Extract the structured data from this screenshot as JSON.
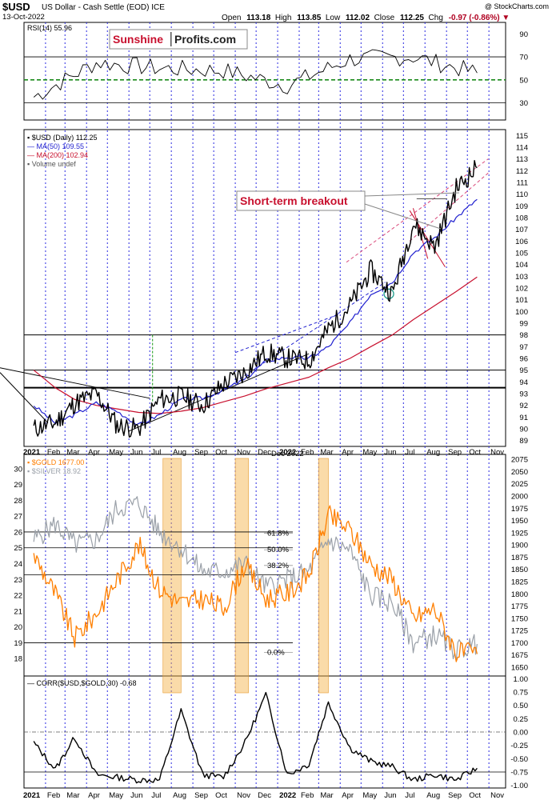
{
  "header": {
    "symbol": "$USD",
    "description": "US Dollar - Cash Settle (EOD) ICE",
    "date": "13-Oct-2022",
    "open_label": "Open",
    "open": "113.18",
    "high_label": "High",
    "high": "113.85",
    "low_label": "Low",
    "low": "112.02",
    "close_label": "Close",
    "close": "112.25",
    "chg_label": "Chg",
    "chg": "-0.97 (-0.86%)",
    "credit": "@ StockCharts.com"
  },
  "logo": {
    "part1": "Sunshine",
    "part2": "Profits.com"
  },
  "annotation": {
    "breakout": "Short-term breakout"
  },
  "x_axis": {
    "labels": [
      "2021",
      "Feb",
      "Mar",
      "Apr",
      "May",
      "Jun",
      "Jul",
      "Aug",
      "Sep",
      "Oct",
      "Nov",
      "Dec",
      "2022",
      "Feb",
      "Mar",
      "Apr",
      "May",
      "Jun",
      "Jul",
      "Aug",
      "Sep",
      "Oct",
      "Nov"
    ],
    "dec_2022_label": "Dec 2022"
  },
  "colors": {
    "usd": "#000000",
    "ma50": "#1f1fcf",
    "ma200": "#c8102e",
    "gold": "#ff7f00",
    "silver": "#9aa0a8",
    "rsi50": "#1a8a1a",
    "highlight": "#f5b041",
    "logo_red": "#c8102e"
  },
  "chart_data": [
    {
      "type": "line",
      "panel": "rsi",
      "legend": "RSI(14) 55.96",
      "ylim": [
        15,
        100
      ],
      "ticks": [
        90,
        70,
        50,
        30
      ],
      "reference_lines": [
        70,
        50,
        30
      ],
      "x": [
        "2021-01",
        "2021-04",
        "2021-07",
        "2021-10",
        "2022-01",
        "2022-04",
        "2022-07",
        "2022-10"
      ],
      "series": [
        {
          "name": "RSI(14)",
          "values": [
            35,
            65,
            60,
            58,
            45,
            68,
            70,
            56
          ]
        }
      ]
    },
    {
      "type": "line",
      "panel": "usd",
      "legend": [
        "$USD (Daily) 112.25",
        "MA(50) 109.55",
        "MA(200) 102.94",
        "Volume undef"
      ],
      "ylim": [
        88.5,
        115.5
      ],
      "ticks": [
        115,
        114,
        113,
        112,
        111,
        110,
        109,
        108,
        107,
        106,
        105,
        104,
        103,
        102,
        101,
        100,
        99,
        98,
        97,
        96,
        95,
        94,
        93,
        92,
        91,
        90,
        89
      ],
      "horizontal_lines": [
        98,
        95,
        93.5
      ],
      "x": [
        "2021-01",
        "2021-02",
        "2021-03",
        "2021-04",
        "2021-05",
        "2021-06",
        "2021-07",
        "2021-08",
        "2021-09",
        "2021-10",
        "2021-11",
        "2021-12",
        "2022-01",
        "2022-02",
        "2022-03",
        "2022-04",
        "2022-05",
        "2022-06",
        "2022-07",
        "2022-08",
        "2022-09",
        "2022-10"
      ],
      "series": [
        {
          "name": "$USD",
          "values": [
            90.0,
            90.5,
            92.2,
            93.0,
            90.3,
            90.0,
            92.5,
            92.8,
            92.0,
            93.8,
            94.8,
            96.5,
            96.0,
            95.8,
            98.5,
            100.5,
            103.5,
            101.5,
            107.5,
            105.5,
            110.5,
            112.25
          ]
        },
        {
          "name": "MA(50)",
          "values": [
            92.0,
            90.5,
            91.2,
            92.2,
            91.5,
            90.3,
            91.2,
            92.5,
            92.6,
            93.3,
            94.2,
            95.8,
            96.1,
            96.0,
            97.0,
            99.0,
            101.5,
            102.5,
            105.0,
            106.3,
            108.0,
            109.55
          ]
        },
        {
          "name": "MA(200)",
          "values": [
            95.0,
            93.5,
            92.5,
            92.0,
            91.7,
            91.4,
            91.3,
            91.5,
            91.8,
            92.3,
            92.8,
            93.4,
            93.9,
            94.4,
            95.2,
            96.0,
            97.0,
            98.0,
            99.3,
            100.5,
            101.7,
            102.94
          ]
        }
      ]
    },
    {
      "type": "line",
      "panel": "gold_silver",
      "legend": [
        "$GOLD 1677.00",
        "$SILVER 18.92"
      ],
      "ylim_gold": [
        1632,
        2085
      ],
      "ylim_silver": [
        16.9,
        30.9
      ],
      "ticks_gold": [
        2075,
        2050,
        2025,
        2000,
        1975,
        1950,
        1925,
        1900,
        1875,
        1850,
        1825,
        1800,
        1775,
        1750,
        1725,
        1700,
        1675,
        1650
      ],
      "ticks_silver": [
        30,
        29,
        28,
        27,
        26,
        25,
        24,
        23,
        22,
        21,
        20,
        19,
        18
      ],
      "fib_levels": [
        {
          "label": "61.8%",
          "value": 1924
        },
        {
          "label": "50.0%",
          "value": 1890
        },
        {
          "label": "38.2%",
          "value": 1858
        },
        {
          "label": "0.0%",
          "value": 1680
        }
      ],
      "x": [
        "2021-01",
        "2021-02",
        "2021-03",
        "2021-04",
        "2021-05",
        "2021-06",
        "2021-07",
        "2021-08",
        "2021-09",
        "2021-10",
        "2021-11",
        "2021-12",
        "2022-01",
        "2022-02",
        "2022-03",
        "2022-04",
        "2022-05",
        "2022-06",
        "2022-07",
        "2022-08",
        "2022-09",
        "2022-10"
      ],
      "series": [
        {
          "name": "$GOLD",
          "values": [
            1880,
            1800,
            1710,
            1760,
            1830,
            1900,
            1810,
            1780,
            1790,
            1770,
            1860,
            1790,
            1800,
            1840,
            1960,
            1930,
            1860,
            1830,
            1750,
            1770,
            1680,
            1677
          ]
        },
        {
          "name": "$SILVER",
          "values": [
            25.5,
            26.5,
            25.2,
            25.5,
            27.5,
            27.8,
            26.0,
            25.0,
            23.5,
            23.5,
            24.0,
            22.5,
            23.0,
            23.5,
            25.5,
            24.8,
            22.0,
            21.5,
            19.0,
            19.5,
            18.5,
            18.92
          ]
        }
      ],
      "highlight_periods": [
        [
          "2021-07-20",
          "2021-08-15"
        ],
        [
          "2021-11-01",
          "2021-11-20"
        ],
        [
          "2022-03-01",
          "2022-03-15"
        ]
      ]
    },
    {
      "type": "line",
      "panel": "correlation",
      "legend": "CORR($USD,$GOLD,30) -0.68",
      "ylim": [
        -1.05,
        1.05
      ],
      "ticks": [
        1.0,
        0.75,
        0.5,
        0.25,
        0.0,
        -0.25,
        -0.5,
        -0.75,
        -1.0
      ],
      "x": [
        "2021-01",
        "2021-02",
        "2021-03",
        "2021-04",
        "2021-05",
        "2021-06",
        "2021-07",
        "2021-08",
        "2021-09",
        "2021-10",
        "2021-11",
        "2021-12",
        "2022-01",
        "2022-02",
        "2022-03",
        "2022-04",
        "2022-05",
        "2022-06",
        "2022-07",
        "2022-08",
        "2022-09",
        "2022-10"
      ],
      "series": [
        {
          "name": "CORR($USD,$GOLD,30)",
          "values": [
            -0.2,
            -0.7,
            -0.1,
            -0.8,
            -0.85,
            -0.9,
            -0.9,
            0.4,
            -0.8,
            -0.85,
            -0.2,
            0.7,
            -0.8,
            -0.6,
            0.55,
            -0.3,
            -0.55,
            -0.65,
            -0.9,
            -0.8,
            -0.9,
            -0.68
          ]
        }
      ]
    }
  ]
}
